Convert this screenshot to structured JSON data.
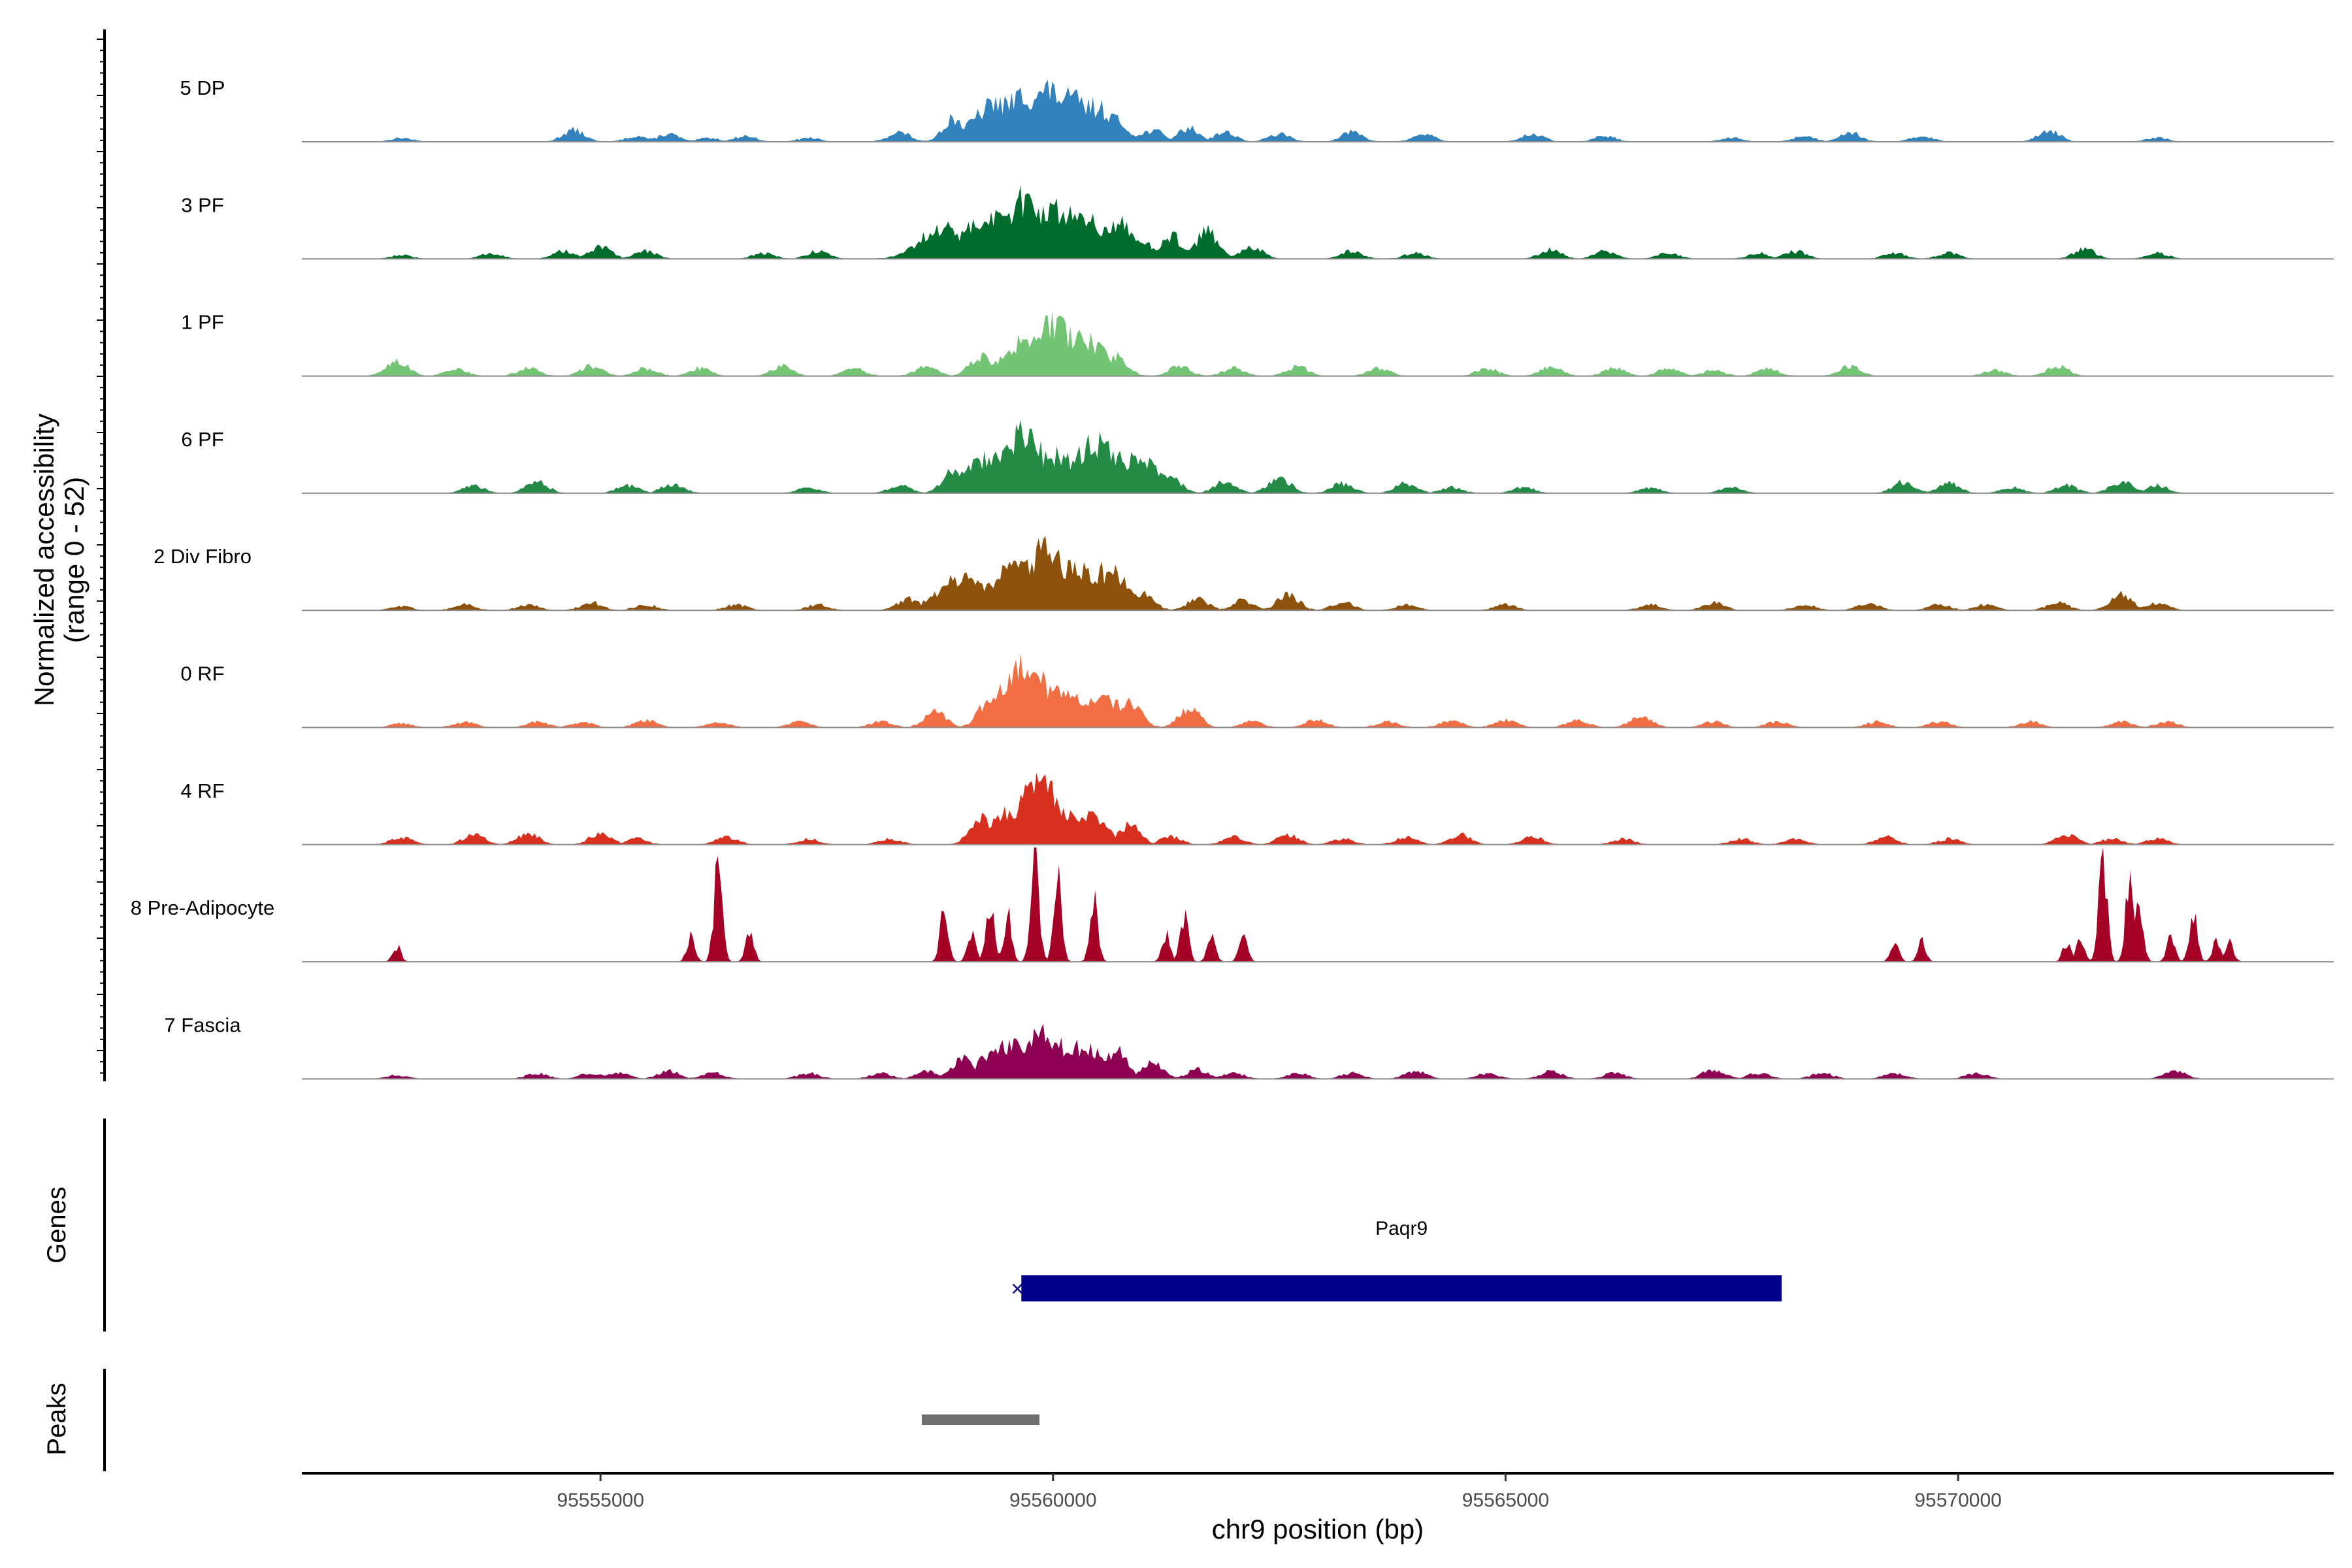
{
  "chart_data": {
    "type": "area",
    "title": "",
    "ylabel_line1": "Normalized accessibility",
    "ylabel_line2": "(range 0 - 52)",
    "y_range": [
      0,
      52
    ],
    "xlabel": "chr9 position (bp)",
    "xlim": [
      95551700,
      95574150
    ],
    "x_ticks": [
      95555000,
      95560000,
      95565000,
      95570000
    ],
    "x_tick_labels": [
      "95555000",
      "95560000",
      "95565000",
      "95570000"
    ],
    "tracks": [
      {
        "name": "5 DP",
        "color": "#3182bd",
        "style": "smooth",
        "peaks": [
          [
            95552800,
            2
          ],
          [
            95554700,
            6
          ],
          [
            95555400,
            3
          ],
          [
            95555750,
            4
          ],
          [
            95556200,
            2
          ],
          [
            95556600,
            3
          ],
          [
            95557300,
            2
          ],
          [
            95558300,
            5
          ],
          [
            95558900,
            12
          ],
          [
            95559400,
            20
          ],
          [
            95559700,
            24
          ],
          [
            95559950,
            26
          ],
          [
            95560200,
            22
          ],
          [
            95560450,
            18
          ],
          [
            95561100,
            6
          ],
          [
            95561500,
            7
          ],
          [
            95561900,
            5
          ],
          [
            95562500,
            4
          ],
          [
            95563300,
            5
          ],
          [
            95564100,
            4
          ],
          [
            95565300,
            4
          ],
          [
            95566100,
            3
          ],
          [
            95567500,
            2
          ],
          [
            95568300,
            3
          ],
          [
            95568800,
            5
          ],
          [
            95569600,
            3
          ],
          [
            95571000,
            6
          ],
          [
            95572200,
            2
          ]
        ]
      },
      {
        "name": "3 PF",
        "color": "#006d2c",
        "style": "smooth",
        "peaks": [
          [
            95552800,
            2
          ],
          [
            95553800,
            3
          ],
          [
            95554600,
            4
          ],
          [
            95555000,
            6
          ],
          [
            95555500,
            4
          ],
          [
            95556800,
            3
          ],
          [
            95557400,
            4
          ],
          [
            95558800,
            16
          ],
          [
            95559300,
            22
          ],
          [
            95559700,
            30
          ],
          [
            95559950,
            26
          ],
          [
            95560300,
            24
          ],
          [
            95560700,
            18
          ],
          [
            95561300,
            12
          ],
          [
            95561700,
            14
          ],
          [
            95562200,
            6
          ],
          [
            95563300,
            4
          ],
          [
            95564000,
            3
          ],
          [
            95565500,
            5
          ],
          [
            95566100,
            4
          ],
          [
            95566800,
            3
          ],
          [
            95567800,
            3
          ],
          [
            95568200,
            4
          ],
          [
            95569300,
            3
          ],
          [
            95569900,
            3
          ],
          [
            95571400,
            5
          ],
          [
            95572200,
            3
          ]
        ]
      },
      {
        "name": "1 PF",
        "color": "#74c476",
        "style": "smooth",
        "peaks": [
          [
            95552750,
            8
          ],
          [
            95553400,
            4
          ],
          [
            95554200,
            4
          ],
          [
            95554900,
            5
          ],
          [
            95555500,
            4
          ],
          [
            95556100,
            4
          ],
          [
            95557000,
            5
          ],
          [
            95557800,
            4
          ],
          [
            95558600,
            5
          ],
          [
            95559200,
            10
          ],
          [
            95559700,
            18
          ],
          [
            95560000,
            26
          ],
          [
            95560300,
            20
          ],
          [
            95560700,
            10
          ],
          [
            95561400,
            5
          ],
          [
            95562000,
            4
          ],
          [
            95562700,
            5
          ],
          [
            95563600,
            4
          ],
          [
            95564800,
            4
          ],
          [
            95565500,
            5
          ],
          [
            95566200,
            4
          ],
          [
            95566800,
            4
          ],
          [
            95567300,
            3
          ],
          [
            95567900,
            4
          ],
          [
            95568800,
            5
          ],
          [
            95570400,
            3
          ],
          [
            95571100,
            5
          ]
        ]
      },
      {
        "name": "6 PF",
        "color": "#238b45",
        "style": "smooth",
        "peaks": [
          [
            95553600,
            4
          ],
          [
            95554300,
            6
          ],
          [
            95555300,
            4
          ],
          [
            95555800,
            5
          ],
          [
            95557300,
            3
          ],
          [
            95558300,
            4
          ],
          [
            95558900,
            12
          ],
          [
            95559300,
            18
          ],
          [
            95559650,
            30
          ],
          [
            95560000,
            20
          ],
          [
            95560500,
            26
          ],
          [
            95560900,
            18
          ],
          [
            95561300,
            8
          ],
          [
            95561900,
            6
          ],
          [
            95562500,
            8
          ],
          [
            95563200,
            5
          ],
          [
            95563900,
            5
          ],
          [
            95564400,
            3
          ],
          [
            95565200,
            3
          ],
          [
            95566600,
            3
          ],
          [
            95567500,
            3
          ],
          [
            95569400,
            6
          ],
          [
            95569900,
            5
          ],
          [
            95570600,
            3
          ],
          [
            95571200,
            4
          ],
          [
            95571800,
            6
          ],
          [
            95572200,
            4
          ]
        ]
      },
      {
        "name": "2 Div Fibro",
        "color": "#8c510a",
        "style": "smooth",
        "peaks": [
          [
            95552800,
            2
          ],
          [
            95553500,
            3
          ],
          [
            95554200,
            3
          ],
          [
            95554900,
            4
          ],
          [
            95555500,
            3
          ],
          [
            95556500,
            3
          ],
          [
            95557400,
            3
          ],
          [
            95558400,
            6
          ],
          [
            95559000,
            16
          ],
          [
            95559600,
            24
          ],
          [
            95559900,
            30
          ],
          [
            95560250,
            22
          ],
          [
            95560600,
            20
          ],
          [
            95561000,
            8
          ],
          [
            95561600,
            6
          ],
          [
            95562100,
            5
          ],
          [
            95562600,
            8
          ],
          [
            95563200,
            4
          ],
          [
            95563900,
            3
          ],
          [
            95565000,
            3
          ],
          [
            95566600,
            3
          ],
          [
            95567300,
            4
          ],
          [
            95568300,
            3
          ],
          [
            95569000,
            4
          ],
          [
            95569800,
            3
          ],
          [
            95570300,
            3
          ],
          [
            95571100,
            4
          ],
          [
            95571800,
            8
          ],
          [
            95572200,
            4
          ]
        ]
      },
      {
        "name": "0 RF",
        "color": "#f16d43",
        "style": "smooth",
        "peaks": [
          [
            95552800,
            2
          ],
          [
            95553500,
            3
          ],
          [
            95554300,
            3
          ],
          [
            95554800,
            3
          ],
          [
            95555500,
            4
          ],
          [
            95556300,
            3
          ],
          [
            95557200,
            3
          ],
          [
            95558100,
            3
          ],
          [
            95558700,
            8
          ],
          [
            95559300,
            14
          ],
          [
            95559700,
            32
          ],
          [
            95560100,
            18
          ],
          [
            95560500,
            16
          ],
          [
            95560850,
            14
          ],
          [
            95561500,
            10
          ],
          [
            95562200,
            3
          ],
          [
            95562900,
            4
          ],
          [
            95563700,
            3
          ],
          [
            95564400,
            4
          ],
          [
            95565000,
            4
          ],
          [
            95565800,
            4
          ],
          [
            95566500,
            6
          ],
          [
            95567300,
            3
          ],
          [
            95568000,
            3
          ],
          [
            95569100,
            3
          ],
          [
            95569800,
            3
          ],
          [
            95570800,
            3
          ],
          [
            95571800,
            3
          ],
          [
            95572300,
            3
          ]
        ]
      },
      {
        "name": "4 RF",
        "color": "#d7301f",
        "style": "smooth",
        "peaks": [
          [
            95552800,
            4
          ],
          [
            95553600,
            5
          ],
          [
            95554200,
            6
          ],
          [
            95555000,
            6
          ],
          [
            95555400,
            3
          ],
          [
            95556400,
            4
          ],
          [
            95557300,
            3
          ],
          [
            95558200,
            3
          ],
          [
            95559200,
            14
          ],
          [
            95559600,
            18
          ],
          [
            95559850,
            30
          ],
          [
            95560300,
            16
          ],
          [
            95560850,
            10
          ],
          [
            95561300,
            4
          ],
          [
            95562000,
            4
          ],
          [
            95562600,
            5
          ],
          [
            95563200,
            3
          ],
          [
            95563900,
            4
          ],
          [
            95564500,
            5
          ],
          [
            95565300,
            4
          ],
          [
            95566300,
            3
          ],
          [
            95567600,
            3
          ],
          [
            95568200,
            3
          ],
          [
            95569200,
            4
          ],
          [
            95569900,
            3
          ],
          [
            95571200,
            5
          ],
          [
            95571700,
            3
          ],
          [
            95572200,
            3
          ]
        ]
      },
      {
        "name": "8 Pre-Adipocyte",
        "color": "#a50026",
        "style": "spiky",
        "peaks": [
          [
            95552750,
            8
          ],
          [
            95556000,
            14
          ],
          [
            95556300,
            52
          ],
          [
            95556650,
            14
          ],
          [
            95558800,
            28
          ],
          [
            95559100,
            14
          ],
          [
            95559300,
            32
          ],
          [
            95559500,
            24
          ],
          [
            95559800,
            60
          ],
          [
            95560050,
            48
          ],
          [
            95560450,
            30
          ],
          [
            95561250,
            14
          ],
          [
            95561450,
            24
          ],
          [
            95561750,
            14
          ],
          [
            95562100,
            14
          ],
          [
            95571200,
            10
          ],
          [
            95571600,
            56
          ],
          [
            95571900,
            46
          ],
          [
            95572000,
            30
          ],
          [
            95572350,
            12
          ],
          [
            95572600,
            24
          ],
          [
            95572850,
            10
          ],
          [
            95573000,
            10
          ],
          [
            95569300,
            10
          ],
          [
            95569600,
            10
          ],
          [
            95571350,
            14
          ]
        ]
      },
      {
        "name": "7 Fascia",
        "color": "#8e0152",
        "style": "smooth",
        "peaks": [
          [
            95552750,
            2
          ],
          [
            95554300,
            3
          ],
          [
            95554900,
            3
          ],
          [
            95555200,
            3
          ],
          [
            95555750,
            4
          ],
          [
            95556250,
            3
          ],
          [
            95557300,
            3
          ],
          [
            95558100,
            3
          ],
          [
            95558600,
            4
          ],
          [
            95559000,
            10
          ],
          [
            95559500,
            18
          ],
          [
            95559900,
            22
          ],
          [
            95560300,
            16
          ],
          [
            95560700,
            14
          ],
          [
            95561100,
            8
          ],
          [
            95561600,
            5
          ],
          [
            95562000,
            3
          ],
          [
            95562700,
            3
          ],
          [
            95563300,
            3
          ],
          [
            95564000,
            4
          ],
          [
            95564800,
            3
          ],
          [
            95565500,
            4
          ],
          [
            95566200,
            3
          ],
          [
            95567300,
            5
          ],
          [
            95567800,
            3
          ],
          [
            95568500,
            3
          ],
          [
            95569300,
            3
          ],
          [
            95570200,
            3
          ],
          [
            95572400,
            4
          ]
        ]
      }
    ],
    "genes_label": "Genes",
    "gene": {
      "name": "Paqr9",
      "start": 95559650,
      "end": 95568050,
      "color": "#00008b",
      "strand_marker": "×"
    },
    "peaks_label": "Peaks",
    "peak_regions": [
      {
        "start": 95558550,
        "end": 95559850,
        "color": "#6e6e6e"
      }
    ]
  }
}
